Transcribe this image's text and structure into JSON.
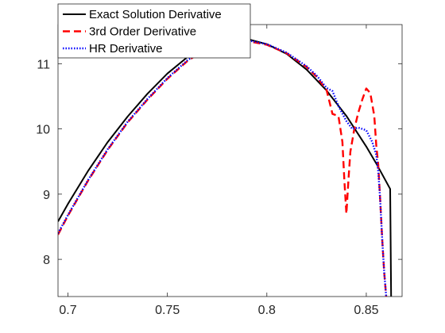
{
  "chart_data": {
    "type": "line",
    "title": "",
    "xlabel": "",
    "ylabel": "",
    "xlim": [
      0.695,
      0.868
    ],
    "ylim": [
      7.43,
      11.6
    ],
    "xticks": [
      0.7,
      0.75,
      0.8,
      0.85
    ],
    "yticks": [
      8,
      9,
      10,
      11
    ],
    "xtick_labels": [
      "0.7",
      "0.75",
      "0.8",
      "0.85"
    ],
    "ytick_labels": [
      "8",
      "9",
      "10",
      "11"
    ],
    "grid": false,
    "legend_position": "top-left",
    "series": [
      {
        "name": "Exact Solution Derivative",
        "color": "#000000",
        "style": "solid",
        "x": [
          0.695,
          0.7,
          0.71,
          0.72,
          0.73,
          0.74,
          0.75,
          0.76,
          0.77,
          0.78,
          0.79,
          0.8,
          0.81,
          0.82,
          0.83,
          0.84,
          0.85,
          0.855,
          0.862,
          0.8625
        ],
        "y": [
          8.58,
          8.85,
          9.35,
          9.8,
          10.19,
          10.54,
          10.85,
          11.1,
          11.27,
          11.36,
          11.38,
          11.3,
          11.15,
          10.91,
          10.59,
          10.2,
          9.73,
          9.47,
          9.08,
          7.43
        ]
      },
      {
        "name": "3rd Order Derivative",
        "color": "#ff0000",
        "style": "dashed",
        "x": [
          0.695,
          0.7,
          0.71,
          0.72,
          0.73,
          0.74,
          0.75,
          0.76,
          0.77,
          0.78,
          0.79,
          0.8,
          0.81,
          0.82,
          0.825,
          0.83,
          0.833,
          0.836,
          0.838,
          0.839,
          0.84,
          0.841,
          0.842,
          0.844,
          0.846,
          0.848,
          0.85,
          0.852,
          0.854,
          0.855,
          0.856,
          0.857,
          0.858,
          0.859,
          0.86
        ],
        "y": [
          8.38,
          8.67,
          9.2,
          9.68,
          10.1,
          10.45,
          10.77,
          11.04,
          11.24,
          11.34,
          11.35,
          11.29,
          11.16,
          10.95,
          10.8,
          10.6,
          10.23,
          10.2,
          9.8,
          9.2,
          8.7,
          9.2,
          9.65,
          10.0,
          10.25,
          10.45,
          10.62,
          10.55,
          10.2,
          9.75,
          9.45,
          8.9,
          8.3,
          7.8,
          7.43
        ]
      },
      {
        "name": "HR Derivative",
        "color": "#0000ff",
        "style": "dotted",
        "x": [
          0.695,
          0.7,
          0.71,
          0.72,
          0.73,
          0.74,
          0.75,
          0.76,
          0.77,
          0.78,
          0.79,
          0.8,
          0.81,
          0.82,
          0.825,
          0.83,
          0.833,
          0.836,
          0.84,
          0.843,
          0.846,
          0.85,
          0.853,
          0.855,
          0.856,
          0.857,
          0.858,
          0.859,
          0.86
        ],
        "y": [
          8.4,
          8.68,
          9.21,
          9.69,
          10.11,
          10.46,
          10.78,
          11.05,
          11.25,
          11.35,
          11.36,
          11.3,
          11.17,
          10.96,
          10.82,
          10.63,
          10.58,
          10.35,
          10.12,
          10.0,
          10.02,
          9.98,
          9.8,
          9.6,
          9.35,
          8.9,
          8.3,
          7.8,
          7.43
        ]
      }
    ]
  }
}
